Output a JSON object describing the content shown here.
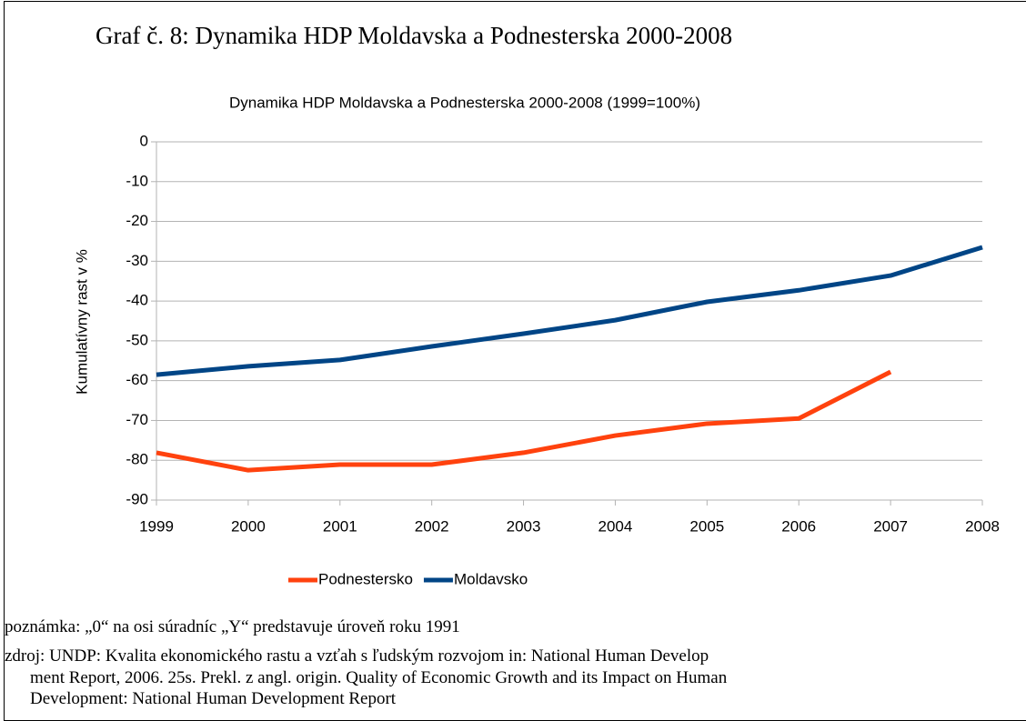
{
  "heading": "Graf č. 8: Dynamika HDP Moldavska a Podnesterska 2000-2008",
  "chart_data": {
    "type": "line",
    "title": "Dynamika HDP Moldavska a Podnesterska 2000-2008 (1999=100%)",
    "y_label": "Kumulatívny rast v %",
    "categories": [
      "1999",
      "2000",
      "2001",
      "2002",
      "2003",
      "2004",
      "2005",
      "2006",
      "2007",
      "2008"
    ],
    "series": [
      {
        "name": "Podnestersko",
        "color": "#ff420e",
        "values": [
          -78.1,
          -82.5,
          -81.1,
          -81.1,
          -78.1,
          -73.8,
          -70.8,
          -69.5,
          -57.8,
          null
        ]
      },
      {
        "name": "Moldavsko",
        "color": "#004586",
        "values": [
          -58.5,
          -56.4,
          -54.8,
          -51.4,
          -48.2,
          -44.8,
          -40.2,
          -37.3,
          -33.6,
          -26.5
        ]
      }
    ],
    "ylim": [
      -90,
      0
    ],
    "yticks": [
      0,
      -10,
      -20,
      -30,
      -40,
      -50,
      -60,
      -70,
      -80,
      -90
    ],
    "grid": true,
    "legend": "bottom"
  },
  "notes": [
    "poznámka: „0“ na osi súradníc „Y“ predstavuje úroveň roku 1991",
    "zdroj: UNDP: Kvalita ekonomického rastu a vzťah s ľudským rozvojom in: National Human Develop",
    "ment Report, 2006. 25s. Prekl. z angl. origin. Quality of Economic Growth and its Impact on Human",
    "Development: National Human Development Report"
  ]
}
